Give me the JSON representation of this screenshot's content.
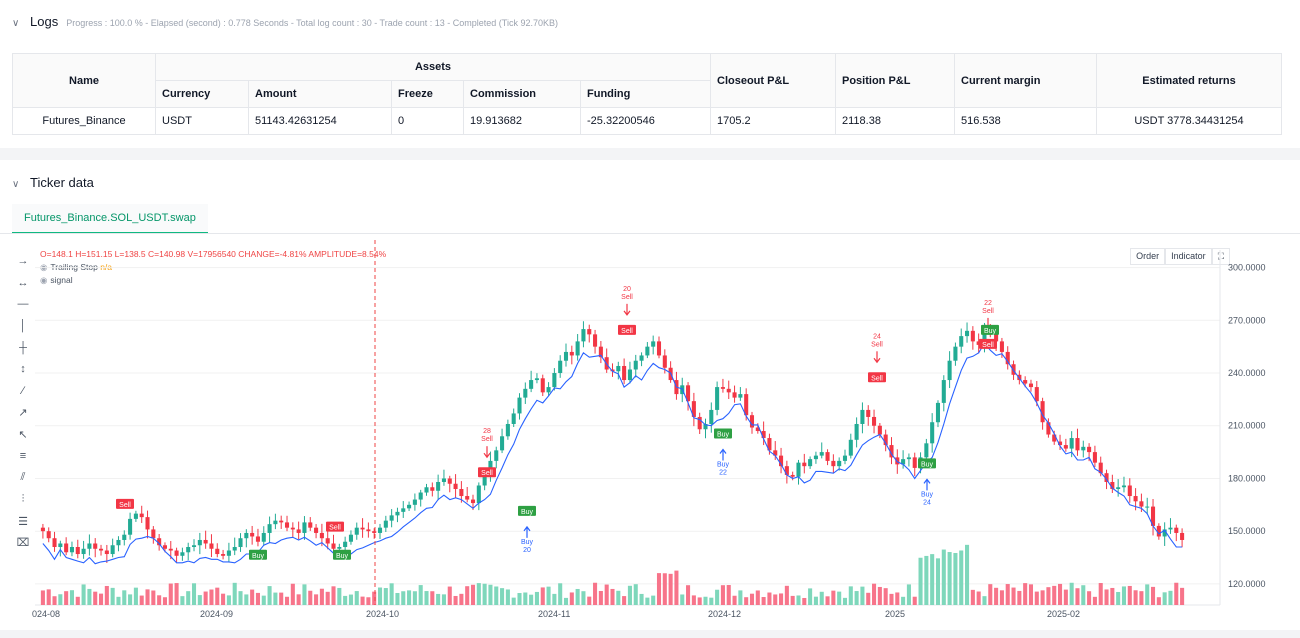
{
  "logs": {
    "title": "Logs",
    "progress_text": "Progress : 100.0 % - Elapsed (second) : 0.778 Seconds - Total log count : 30 - Trade count : 13 - Completed (Tick 92.70KB)",
    "table": {
      "name_header": "Name",
      "assets_header": "Assets",
      "sub_headers": [
        "Currency",
        "Amount",
        "Freeze",
        "Commission",
        "Funding"
      ],
      "other_headers": [
        "Closeout P&L",
        "Position P&L",
        "Current margin",
        "Estimated returns"
      ],
      "row": {
        "name": "Futures_Binance",
        "currency": "USDT",
        "amount": "51143.42631254",
        "freeze": "0",
        "commission": "19.913682",
        "funding": "-25.32200546",
        "closeout": "1705.2",
        "position": "2118.38",
        "margin": "516.538",
        "returns": "USDT 3778.34431254"
      }
    }
  },
  "ticker": {
    "title": "Ticker data",
    "tab": "Futures_Binance.SOL_USDT.swap",
    "ohlc_text": "O=148.1 H=151.15 L=138.5 C=140.98 V=17956540 CHANGE=-4.81% AMPLITUDE=8.54%",
    "legend_trailing": "Trailing Stop",
    "legend_trailing_value": "n/a",
    "legend_signal": "signal",
    "btn_order": "Order",
    "btn_indicator": "Indicator",
    "tools": [
      "horizontal-ray-icon",
      "horizontal-line-icon",
      "extended-line-icon",
      "vertical-line-icon",
      "cross-line-icon",
      "vertical-measure-icon",
      "trend-line-icon",
      "ray-icon",
      "arrow-line-icon",
      "price-range-icon",
      "parallel-channel-icon",
      "fib-icon",
      "text-tool-icon",
      "trash-icon"
    ],
    "colors": {
      "up": "#22ab94",
      "down": "#f23645",
      "trailing": "#2962ff",
      "vol_up": "#7ed7bb",
      "vol_down": "#f7748a"
    }
  },
  "chart_data": {
    "type": "candlestick",
    "y_ticks": [
      "300.0000",
      "270.0000",
      "240.0000",
      "210.0000",
      "180.0000",
      "150.0000",
      "120.0000"
    ],
    "ylim": [
      108,
      310
    ],
    "x_ticks": [
      "024-08",
      "2024-09",
      "2024-10",
      "2024-11",
      "2024-12",
      "2025",
      "2025-02"
    ],
    "close_prices": [
      150,
      146,
      141,
      143,
      138,
      141,
      137,
      140,
      143,
      140,
      139,
      137,
      142,
      145,
      148,
      157,
      160,
      158,
      151,
      146,
      142,
      140,
      139,
      136,
      138,
      141,
      142,
      145,
      143,
      140,
      137,
      136,
      139,
      141,
      146,
      149,
      147,
      144,
      149,
      154,
      156,
      155,
      152,
      151,
      149,
      155,
      152,
      149,
      146,
      143,
      140,
      141,
      144,
      148,
      152,
      151,
      150,
      149,
      152,
      156,
      159,
      161,
      163,
      165,
      168,
      172,
      175,
      173,
      178,
      180,
      177,
      174,
      170,
      168,
      166,
      176,
      182,
      190,
      196,
      204,
      211,
      217,
      226,
      231,
      236,
      237,
      229,
      232,
      240,
      247,
      252,
      250,
      258,
      265,
      262,
      255,
      249,
      242,
      241,
      244,
      236,
      242,
      247,
      250,
      255,
      258,
      250,
      243,
      236,
      228,
      233,
      224,
      215,
      208,
      211,
      219,
      232,
      231,
      229,
      226,
      228,
      216,
      209,
      207,
      203,
      196,
      193,
      187,
      182,
      181,
      189,
      187,
      191,
      193,
      195,
      190,
      187,
      190,
      193,
      202,
      211,
      219,
      215,
      210,
      205,
      199,
      192,
      188,
      191,
      192,
      186,
      192,
      200,
      212,
      223,
      236,
      247,
      255,
      261,
      264,
      258,
      256,
      264,
      262,
      258,
      252,
      245,
      239,
      236,
      234,
      232,
      224,
      212,
      205,
      201,
      199,
      197,
      203,
      196,
      198,
      195,
      189,
      183,
      178,
      174,
      175,
      176,
      170,
      167,
      164,
      164,
      153,
      147,
      151,
      152,
      149,
      145
    ],
    "signals": [
      {
        "label": "Sell",
        "price": 165
      },
      {
        "label": "Buy",
        "price": 136
      },
      {
        "label": "Sell",
        "price": 152
      },
      {
        "label": "Buy",
        "price": 136
      },
      {
        "label": "Sell",
        "number": "28",
        "price": 183
      },
      {
        "label": "Buy",
        "number": "20",
        "price": 161
      },
      {
        "label": "Sell",
        "number": "20",
        "price": 264
      },
      {
        "label": "Buy",
        "number": "22",
        "price": 205
      },
      {
        "label": "Sell",
        "number": "24",
        "price": 237
      },
      {
        "label": "Buy",
        "number": "24",
        "price": 188
      },
      {
        "label": "Sell",
        "number": "22",
        "price": 256
      },
      {
        "label": "Buy",
        "price": 264
      }
    ]
  }
}
